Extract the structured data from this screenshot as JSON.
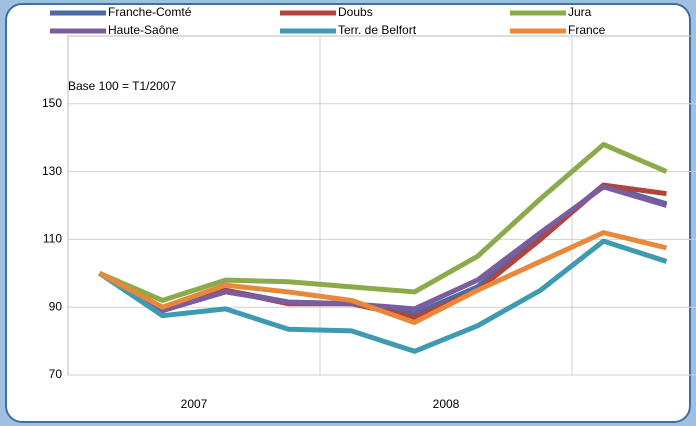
{
  "chart_data": {
    "type": "line",
    "annotation": "Base 100 = T1/2007",
    "categories": [
      null,
      null,
      null,
      null,
      null,
      null,
      null,
      null,
      null,
      null
    ],
    "category_groups": [
      {
        "label": "2007",
        "span": 4
      },
      {
        "label": "2008",
        "span": 4
      }
    ],
    "ylim": [
      70,
      170
    ],
    "yticks": [
      70,
      90,
      110,
      130,
      150
    ],
    "grid": true,
    "legend": "top",
    "series": [
      {
        "name": "Franche-Comté",
        "color": "#4a6aa6",
        "values": [
          100,
          89,
          95,
          91.5,
          91,
          88,
          96,
          111,
          126,
          120.5
        ]
      },
      {
        "name": "Doubs",
        "color": "#b0443f",
        "values": [
          100,
          89,
          95,
          91,
          91,
          87,
          95,
          110,
          126,
          123.5
        ]
      },
      {
        "name": "Jura",
        "color": "#8bab4b",
        "values": [
          100,
          92,
          98,
          97.5,
          96,
          94.5,
          105,
          122,
          138,
          130
        ]
      },
      {
        "name": "Haute-Saône",
        "color": "#7b5c9e",
        "values": [
          100,
          89,
          94.5,
          91.5,
          91,
          89.5,
          98,
          112,
          125.5,
          120
        ]
      },
      {
        "name": "Terr. de Belfort",
        "color": "#3e9ab0",
        "values": [
          100,
          87.5,
          89.5,
          83.5,
          83,
          77,
          84.5,
          95,
          109.5,
          103.5
        ]
      },
      {
        "name": "France",
        "color": "#e8883a",
        "values": [
          100,
          90,
          96.5,
          94.5,
          92,
          85.5,
          95,
          103.5,
          112,
          107.5
        ]
      }
    ]
  }
}
